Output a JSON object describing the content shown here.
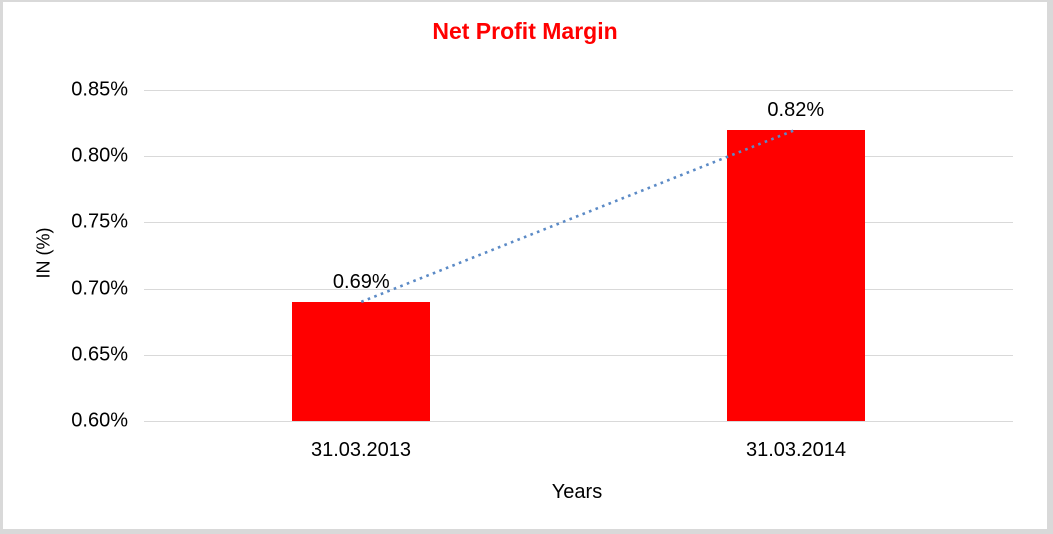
{
  "chart_data": {
    "type": "bar",
    "title": "Net Profit Margin",
    "categories": [
      "31.03.2013",
      "31.03.2014"
    ],
    "values": [
      0.69,
      0.82
    ],
    "value_labels": [
      "0.69%",
      "0.82%"
    ],
    "xlabel": "Years",
    "ylabel": "IN (%)",
    "ylim": [
      0.6,
      0.85
    ],
    "ytick_step": 0.05,
    "ytick_labels": [
      "0.85%",
      "0.80%",
      "0.75%",
      "0.70%",
      "0.65%",
      "0.60%"
    ],
    "grid": true,
    "legend": false,
    "trendline": {
      "type": "linear",
      "style": "dotted",
      "connects": "bar tops"
    },
    "colors": {
      "bar": "#ff0000",
      "title": "#ff0000",
      "gridline": "#d9d9d9",
      "trendline": "#5b8ac6",
      "text": "#000000",
      "frame_border": "#d9d9d9",
      "background": "#ffffff"
    }
  }
}
